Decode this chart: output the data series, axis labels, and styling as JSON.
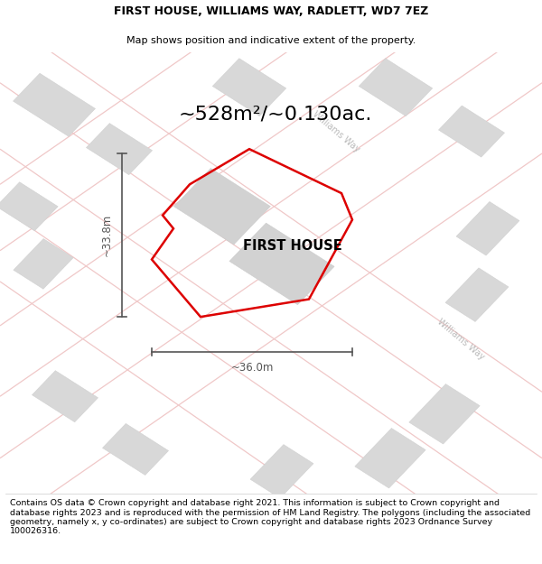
{
  "title_line1": "FIRST HOUSE, WILLIAMS WAY, RADLETT, WD7 7EZ",
  "title_line2": "Map shows position and indicative extent of the property.",
  "area_text": "~528m²/~0.130ac.",
  "property_label": "FIRST HOUSE",
  "dim_width": "~36.0m",
  "dim_height": "~33.8m",
  "footer_text": "Contains OS data © Crown copyright and database right 2021. This information is subject to Crown copyright and database rights 2023 and is reproduced with the permission of HM Land Registry. The polygons (including the associated geometry, namely x, y co-ordinates) are subject to Crown copyright and database rights 2023 Ordnance Survey 100026316.",
  "map_bg": "#f7f7f7",
  "road_color_light": "#f0c8c8",
  "property_fill": "none",
  "property_edge": "#dd0000",
  "building_fill": "#d8d8d8",
  "building_edge": "#cccccc",
  "street_label_color": "#bbbbbb",
  "dim_color": "#555555",
  "title_fontsize": 9.0,
  "subtitle_fontsize": 8.0,
  "area_fontsize": 16,
  "label_fontsize": 10.5,
  "footer_fontsize": 6.8,
  "prop_lw": 1.8,
  "road_lw": 0.9
}
